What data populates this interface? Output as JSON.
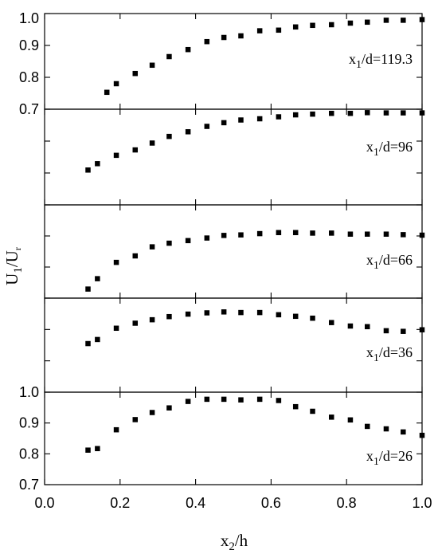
{
  "chart_data": {
    "type": "scatter",
    "xlabel": {
      "base": "x",
      "sub": "2",
      "rest": "/h"
    },
    "ylabel": {
      "base": "U",
      "sub1": "1",
      "mid": "/U",
      "sub2": "r"
    },
    "xlim": [
      0.0,
      1.0
    ],
    "x_ticks": [
      "0.0",
      "0.2",
      "0.4",
      "0.6",
      "0.8",
      "1.0"
    ],
    "marker_color": "#000000",
    "panels": [
      {
        "label": {
          "base": "x",
          "sub": "1",
          "rest": "/d=119.3"
        },
        "ylim": [
          0.7,
          1.0
        ],
        "y_ticks": [
          "1.0",
          "0.9",
          "0.8",
          "0.7"
        ],
        "x": [
          0.165,
          0.19,
          0.24,
          0.285,
          0.33,
          0.38,
          0.43,
          0.475,
          0.52,
          0.57,
          0.62,
          0.665,
          0.71,
          0.76,
          0.81,
          0.855,
          0.905,
          0.95,
          1.0
        ],
        "y": [
          0.753,
          0.78,
          0.812,
          0.838,
          0.865,
          0.887,
          0.912,
          0.925,
          0.93,
          0.946,
          0.948,
          0.958,
          0.963,
          0.965,
          0.97,
          0.973,
          0.979,
          0.979,
          0.981
        ]
      },
      {
        "label": {
          "base": "x",
          "sub": "1",
          "rest": "/d=96"
        },
        "ylim": [
          0.61,
          1.0
        ],
        "y_ticks": [],
        "x": [
          0.115,
          0.14,
          0.19,
          0.24,
          0.285,
          0.33,
          0.38,
          0.43,
          0.475,
          0.52,
          0.57,
          0.62,
          0.665,
          0.71,
          0.76,
          0.81,
          0.855,
          0.905,
          0.95,
          1.0
        ],
        "y": [
          0.752,
          0.778,
          0.812,
          0.834,
          0.862,
          0.889,
          0.908,
          0.93,
          0.945,
          0.956,
          0.961,
          0.969,
          0.977,
          0.98,
          0.983,
          0.983,
          0.986,
          0.985,
          0.985,
          0.985
        ]
      },
      {
        "label": {
          "base": "x",
          "sub": "1",
          "rest": "/d=66"
        },
        "ylim": [
          0.64,
          1.0
        ],
        "y_ticks": [],
        "x": [
          0.115,
          0.14,
          0.19,
          0.24,
          0.285,
          0.33,
          0.38,
          0.43,
          0.475,
          0.52,
          0.57,
          0.62,
          0.665,
          0.71,
          0.76,
          0.81,
          0.855,
          0.905,
          0.95,
          1.0
        ],
        "y": [
          0.675,
          0.715,
          0.778,
          0.803,
          0.838,
          0.852,
          0.862,
          0.872,
          0.882,
          0.884,
          0.889,
          0.893,
          0.893,
          0.891,
          0.891,
          0.887,
          0.887,
          0.887,
          0.885,
          0.883
        ]
      },
      {
        "label": {
          "base": "x",
          "sub": "1",
          "rest": "/d=36"
        },
        "ylim": [
          0.7,
          1.0
        ],
        "y_ticks": [],
        "x": [
          0.115,
          0.14,
          0.19,
          0.24,
          0.285,
          0.33,
          0.38,
          0.43,
          0.475,
          0.52,
          0.57,
          0.62,
          0.665,
          0.71,
          0.76,
          0.81,
          0.855,
          0.905,
          0.95,
          1.0
        ],
        "y": [
          0.855,
          0.868,
          0.904,
          0.92,
          0.931,
          0.941,
          0.949,
          0.953,
          0.956,
          0.954,
          0.954,
          0.947,
          0.942,
          0.936,
          0.922,
          0.911,
          0.909,
          0.896,
          0.894,
          0.899
        ]
      },
      {
        "label": {
          "base": "x",
          "sub": "1",
          "rest": "/d=26"
        },
        "ylim": [
          0.7,
          1.0
        ],
        "y_ticks": [
          "1.0",
          "0.9",
          "0.8",
          "0.7"
        ],
        "x": [
          0.115,
          0.14,
          0.19,
          0.24,
          0.285,
          0.33,
          0.38,
          0.43,
          0.475,
          0.52,
          0.57,
          0.62,
          0.665,
          0.71,
          0.76,
          0.81,
          0.855,
          0.905,
          0.95,
          1.0
        ],
        "y": [
          0.812,
          0.817,
          0.878,
          0.911,
          0.934,
          0.949,
          0.97,
          0.977,
          0.977,
          0.975,
          0.977,
          0.973,
          0.953,
          0.938,
          0.919,
          0.91,
          0.889,
          0.881,
          0.871,
          0.86
        ]
      }
    ]
  }
}
